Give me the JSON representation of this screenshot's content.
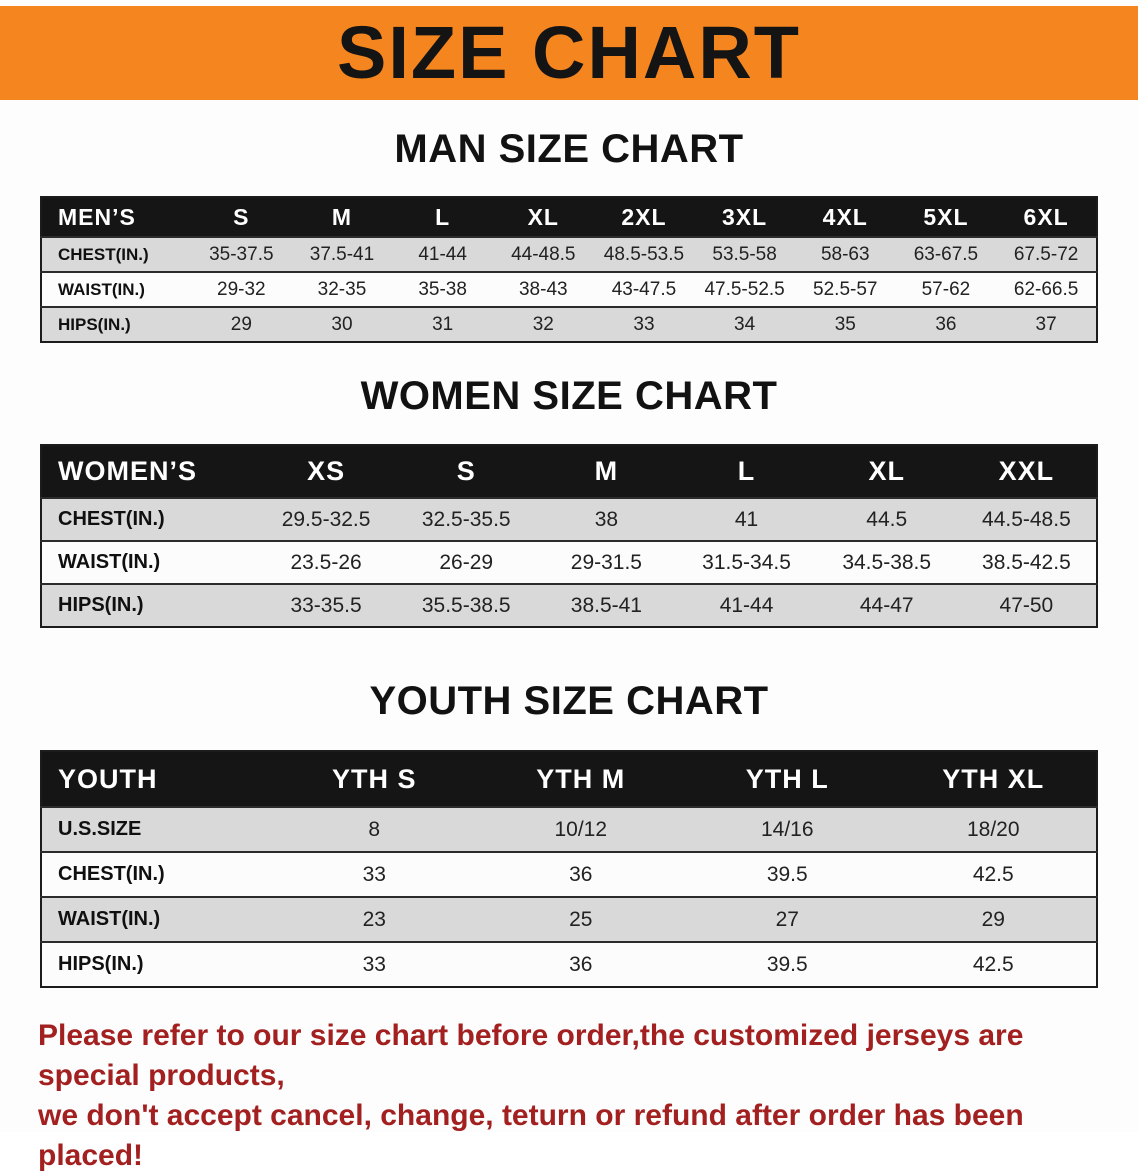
{
  "banner": {
    "title": "SIZE CHART"
  },
  "sections": [
    {
      "heading": "MAN SIZE CHART",
      "table": {
        "header": [
          "MEN’S",
          "S",
          "M",
          "L",
          "XL",
          "2XL",
          "3XL",
          "4XL",
          "5XL",
          "6XL"
        ],
        "rows": [
          [
            "CHEST(IN.)",
            "35-37.5",
            "37.5-41",
            "41-44",
            "44-48.5",
            "48.5-53.5",
            "53.5-58",
            "58-63",
            "63-67.5",
            "67.5-72"
          ],
          [
            "WAIST(IN.)",
            "29-32",
            "32-35",
            "35-38",
            "38-43",
            "43-47.5",
            "47.5-52.5",
            "52.5-57",
            "57-62",
            "62-66.5"
          ],
          [
            "HIPS(IN.)",
            "29",
            "30",
            "31",
            "32",
            "33",
            "34",
            "35",
            "36",
            "37"
          ]
        ]
      }
    },
    {
      "heading": "WOMEN SIZE CHART",
      "table": {
        "header": [
          "WOMEN’S",
          "XS",
          "S",
          "M",
          "L",
          "XL",
          "XXL"
        ],
        "rows": [
          [
            "CHEST(IN.)",
            "29.5-32.5",
            "32.5-35.5",
            "38",
            "41",
            "44.5",
            "44.5-48.5"
          ],
          [
            "WAIST(IN.)",
            "23.5-26",
            "26-29",
            "29-31.5",
            "31.5-34.5",
            "34.5-38.5",
            "38.5-42.5"
          ],
          [
            "HIPS(IN.)",
            "33-35.5",
            "35.5-38.5",
            "38.5-41",
            "41-44",
            "44-47",
            "47-50"
          ]
        ]
      }
    },
    {
      "heading": "YOUTH SIZE CHART",
      "table": {
        "header": [
          "YOUTH",
          "YTH S",
          "YTH M",
          "YTH L",
          "YTH XL"
        ],
        "rows": [
          [
            "U.S.SIZE",
            "8",
            "10/12",
            "14/16",
            "18/20"
          ],
          [
            "CHEST(IN.)",
            "33",
            "36",
            "39.5",
            "42.5"
          ],
          [
            "WAIST(IN.)",
            "23",
            "25",
            "27",
            "29"
          ],
          [
            "HIPS(IN.)",
            "33",
            "36",
            "39.5",
            "42.5"
          ]
        ]
      }
    }
  ],
  "footer": {
    "line1": "Please refer to our size chart before order,the customized jerseys are special products,",
    "line2": "we don't accept cancel, change, teturn or refund after order has been placed!"
  },
  "theme": {
    "banner_bg": "#f5861f",
    "banner_text": "#141414",
    "header_row_bg": "#151515",
    "header_row_text": "#ffffff",
    "row_shade": "#d9d9d9",
    "row_plain": "#fcfcfc",
    "footer_text_color": "#a32020"
  }
}
